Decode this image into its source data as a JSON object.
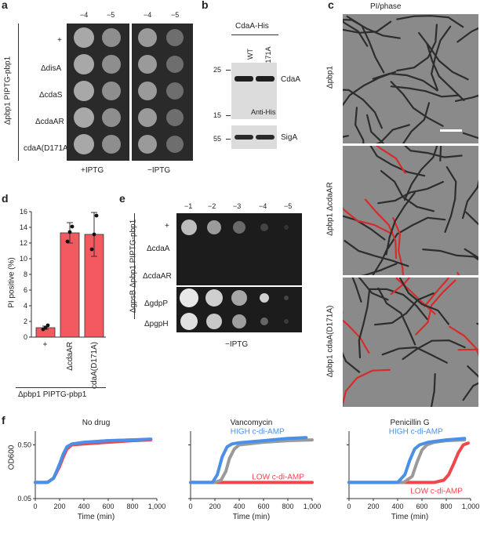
{
  "panel_a": {
    "label": "a",
    "dilutions": [
      "−4",
      "−5"
    ],
    "strain_axis": "Δpbp1 PIPTG-pbp1",
    "rows": [
      "+",
      "ΔdisA",
      "ΔcdaS",
      "ΔcdaAR",
      "cdaA(D171A)"
    ],
    "conditions": [
      "+IPTG",
      "−IPTG"
    ]
  },
  "panel_b": {
    "label": "b",
    "header": "CdaA-His",
    "lanes": [
      "WT",
      "D171A"
    ],
    "markers": [
      "25",
      "15",
      "55"
    ],
    "band_cdaa": "CdaA",
    "antibody": "Anti-His",
    "band_siga": "SigA"
  },
  "panel_c": {
    "label": "c",
    "title": "PI/phase",
    "strains": [
      "Δpbp1",
      "Δpbp1 ΔcdaAR",
      "Δpbp1 cdaA(D171A)"
    ]
  },
  "panel_d": {
    "label": "d",
    "ylabel": "PI positive (%)",
    "yticks": [
      "0",
      "2",
      "4",
      "6",
      "8",
      "10",
      "12",
      "14",
      "16"
    ],
    "xlabels": [
      "+",
      "ΔcdaAR",
      "cdaA(D171A)"
    ],
    "strain_label": "Δpbp1 PIPTG-pbp1",
    "color": "#f25a5f"
  },
  "panel_e": {
    "label": "e",
    "dilutions": [
      "−1",
      "−2",
      "−3",
      "−4",
      "−5"
    ],
    "strain_axis": "ΔgpsB Δpbp1 PIPTG-pbp1",
    "rows": [
      "+",
      "ΔcdaA",
      "ΔcdaAR",
      "ΔgdpP",
      "ΔpgpH"
    ],
    "condition": "−IPTG"
  },
  "panel_f": {
    "label": "f",
    "ylabel": "OD600",
    "xlabel": "Time (min)",
    "xticks": [
      "0",
      "200",
      "400",
      "600",
      "800",
      "1,000"
    ],
    "ytick_labels": [
      "0.50",
      "0.05"
    ],
    "titles": [
      "No drug",
      "Vancomycin",
      "Penicillin G"
    ],
    "high_label": "HIGH c-di-AMP",
    "low_label": "LOW c-di-AMP",
    "colors": {
      "high": "#4a8fe8",
      "mid": "#9a9a9a",
      "low": "#f0474d"
    }
  },
  "chart_data": [
    {
      "type": "bar",
      "categories": [
        "+",
        "ΔcdaAR",
        "cdaA(D171A)"
      ],
      "values": [
        1.2,
        13.3,
        13.1
      ],
      "errors": [
        0.2,
        1.3,
        2.8
      ],
      "points": [
        [
          1.0,
          1.2,
          1.5
        ],
        [
          12.2,
          13.4,
          14.1
        ],
        [
          11.2,
          13.1,
          15.5
        ]
      ],
      "ylabel": "PI positive (%)",
      "ylim": [
        0,
        16
      ]
    },
    {
      "type": "line",
      "title": "No drug",
      "xlabel": "Time (min)",
      "ylabel": "OD600",
      "xlim": [
        0,
        1000
      ],
      "ylim": [
        0.05,
        0.9
      ],
      "yscale": "log",
      "series": [
        {
          "color": "#9a9a9a",
          "x": [
            0,
            100,
            150,
            200,
            230,
            260,
            300,
            400,
            600,
            800,
            950
          ],
          "y": [
            0.1,
            0.1,
            0.12,
            0.2,
            0.3,
            0.42,
            0.5,
            0.55,
            0.6,
            0.62,
            0.63
          ]
        },
        {
          "color": "#f0474d",
          "x": [
            0,
            100,
            150,
            200,
            230,
            260,
            300,
            400,
            600,
            800,
            950
          ],
          "y": [
            0.1,
            0.1,
            0.12,
            0.2,
            0.3,
            0.42,
            0.5,
            0.52,
            0.56,
            0.6,
            0.62
          ]
        },
        {
          "color": "#4a8fe8",
          "x": [
            0,
            100,
            150,
            200,
            230,
            260,
            300,
            400,
            600,
            800,
            950
          ],
          "y": [
            0.1,
            0.1,
            0.12,
            0.22,
            0.34,
            0.46,
            0.52,
            0.56,
            0.6,
            0.62,
            0.64
          ]
        }
      ]
    },
    {
      "type": "line",
      "title": "Vancomycin",
      "xlabel": "Time (min)",
      "ylabel": "OD600",
      "xlim": [
        0,
        1000
      ],
      "ylim": [
        0.05,
        0.9
      ],
      "yscale": "log",
      "series": [
        {
          "name": "LOW c-di-AMP",
          "color": "#f0474d",
          "x": [
            0,
            200,
            400,
            600,
            800,
            1000
          ],
          "y": [
            0.1,
            0.1,
            0.1,
            0.1,
            0.1,
            0.1
          ]
        },
        {
          "color": "#9a9a9a",
          "x": [
            0,
            200,
            250,
            290,
            320,
            360,
            400,
            600,
            800,
            1000
          ],
          "y": [
            0.1,
            0.1,
            0.11,
            0.16,
            0.28,
            0.42,
            0.5,
            0.56,
            0.6,
            0.62
          ]
        },
        {
          "name": "HIGH c-di-AMP",
          "color": "#4a8fe8",
          "x": [
            0,
            180,
            220,
            260,
            300,
            340,
            400,
            600,
            800,
            950
          ],
          "y": [
            0.1,
            0.1,
            0.14,
            0.3,
            0.46,
            0.52,
            0.55,
            0.6,
            0.66,
            0.68
          ]
        }
      ]
    },
    {
      "type": "line",
      "title": "Penicillin G",
      "xlabel": "Time (min)",
      "ylabel": "OD600",
      "xlim": [
        0,
        1000
      ],
      "ylim": [
        0.05,
        0.9
      ],
      "yscale": "log",
      "series": [
        {
          "name": "LOW c-di-AMP",
          "color": "#f0474d",
          "x": [
            0,
            700,
            780,
            820,
            860,
            900,
            940,
            980
          ],
          "y": [
            0.1,
            0.1,
            0.11,
            0.14,
            0.22,
            0.36,
            0.5,
            0.54
          ]
        },
        {
          "color": "#9a9a9a",
          "x": [
            0,
            450,
            520,
            560,
            600,
            640,
            700,
            800,
            950
          ],
          "y": [
            0.1,
            0.1,
            0.13,
            0.24,
            0.4,
            0.5,
            0.56,
            0.6,
            0.62
          ]
        },
        {
          "name": "HIGH c-di-AMP",
          "color": "#4a8fe8",
          "x": [
            0,
            400,
            460,
            500,
            540,
            580,
            650,
            800,
            950
          ],
          "y": [
            0.1,
            0.1,
            0.14,
            0.26,
            0.42,
            0.5,
            0.56,
            0.62,
            0.66
          ]
        }
      ]
    }
  ]
}
